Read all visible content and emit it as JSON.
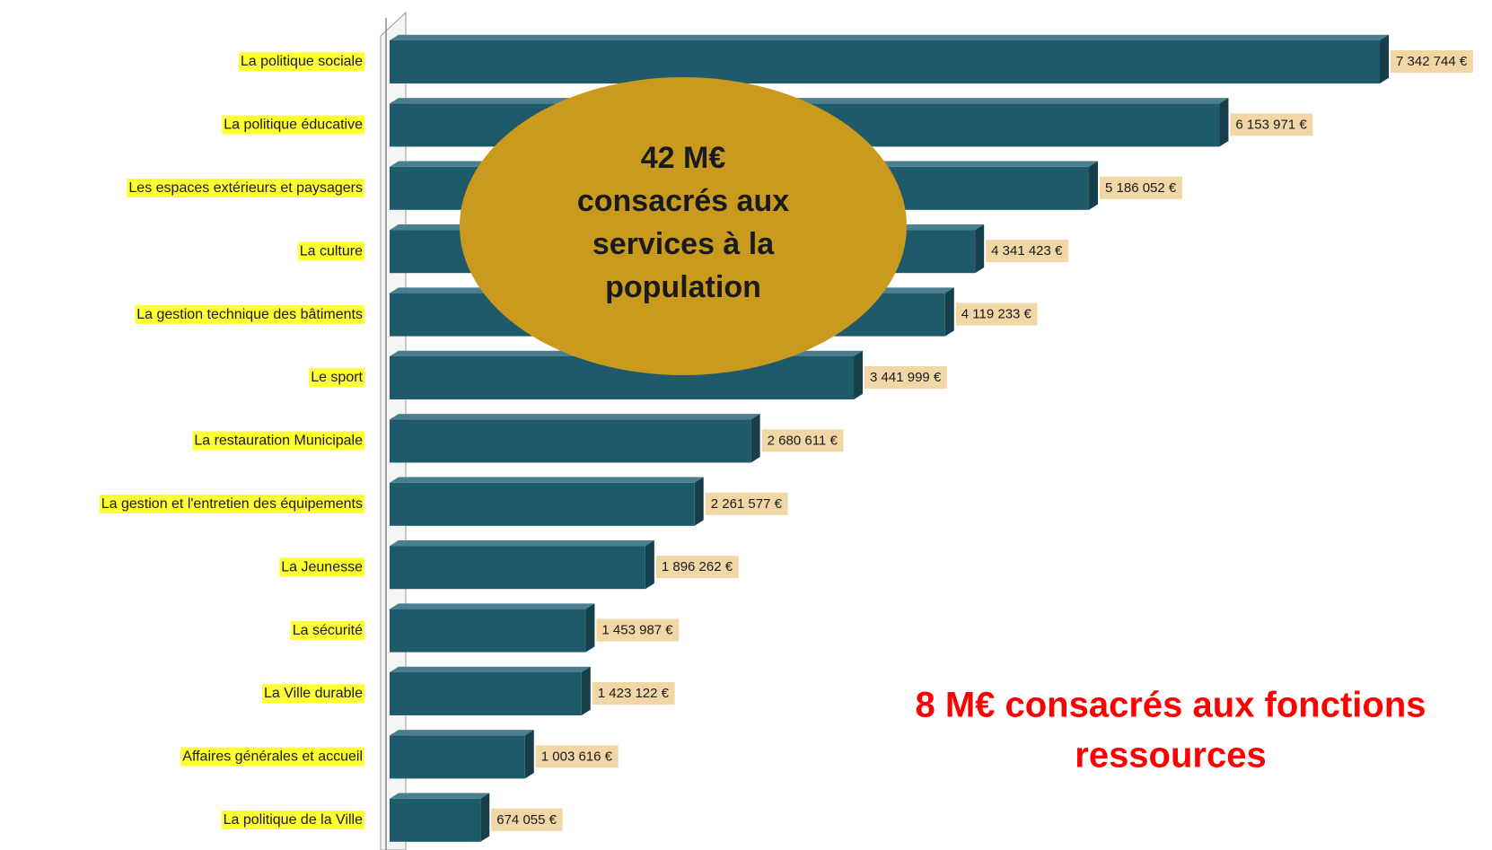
{
  "chart_data": {
    "type": "bar",
    "orientation": "horizontal",
    "categories": [
      "La politique sociale",
      "La politique éducative",
      "Les espaces extérieurs et paysagers",
      "La culture",
      "La gestion technique des bâtiments",
      "Le sport",
      "La restauration Municipale",
      "La gestion et l'entretien des équipements",
      "La Jeunesse",
      "La sécurité",
      "La Ville durable",
      "Affaires générales et accueil",
      "La politique de la Ville"
    ],
    "values": [
      7342744,
      6153971,
      5186052,
      4341423,
      4119233,
      3441999,
      2680611,
      2261577,
      1896262,
      1453987,
      1423122,
      1003616,
      674055
    ],
    "value_labels": [
      "7 342 744 €",
      "6 153 971 €",
      "5 186 052 €",
      "4 341 423 €",
      "4 119 233 €",
      "3 441 999 €",
      "2 680 611 €",
      "2 261 577 €",
      "1 896 262 €",
      "1 453 987 €",
      "1 423 122 €",
      "1 003 616 €",
      "674 055 €"
    ],
    "color": "#1f5a6b",
    "annotations": [
      {
        "lines": [
          "42 M€",
          "consacrés aux",
          "services à la",
          "population"
        ],
        "color": "#c99a1e"
      },
      {
        "lines": [
          "8 M€ consacrés aux fonctions",
          "ressources"
        ],
        "color": "#ff0000"
      }
    ]
  }
}
